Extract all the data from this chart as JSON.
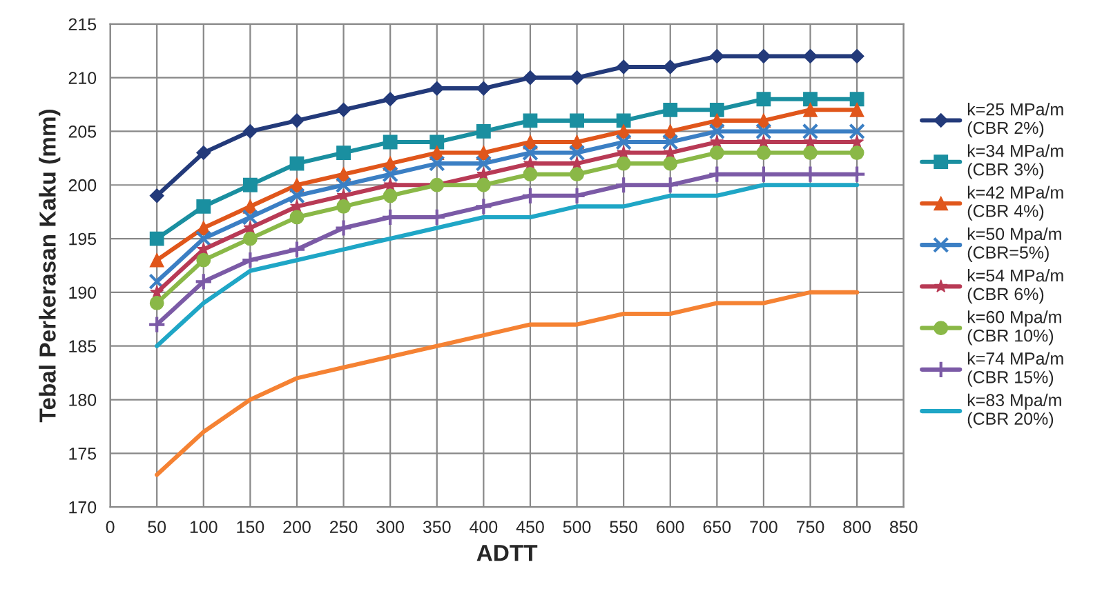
{
  "chart_data": {
    "type": "line",
    "xlabel": "ADTT",
    "ylabel": "Tebal Perkerasan Kaku (mm)",
    "x": [
      50,
      100,
      150,
      200,
      250,
      300,
      350,
      400,
      450,
      500,
      550,
      600,
      650,
      700,
      750,
      800
    ],
    "xlim": [
      0,
      850
    ],
    "xticks": [
      0,
      50,
      100,
      150,
      200,
      250,
      300,
      350,
      400,
      450,
      500,
      550,
      600,
      650,
      700,
      750,
      800,
      850
    ],
    "ylim": [
      170,
      215
    ],
    "yticks": [
      170,
      175,
      180,
      185,
      190,
      195,
      200,
      205,
      210,
      215
    ],
    "grid": true,
    "legend": "right",
    "line_style": "solid",
    "series": [
      {
        "name": "k=25 MPa/m\n(CBR 2%)",
        "color": "#233a7a",
        "marker": "diamond",
        "values": [
          199,
          203,
          205,
          206,
          207,
          208,
          209,
          209,
          210,
          210,
          211,
          211,
          212,
          212,
          212,
          212
        ]
      },
      {
        "name": "k=34 MPa/m\n(CBR 3%)",
        "color": "#1a8fa0",
        "marker": "square",
        "values": [
          195,
          198,
          200,
          202,
          203,
          204,
          204,
          205,
          206,
          206,
          206,
          207,
          207,
          208,
          208,
          208
        ]
      },
      {
        "name": "k=42 MPa/m\n(CBR 4%)",
        "color": "#e0561b",
        "marker": "triangle",
        "values": [
          193,
          196,
          198,
          200,
          201,
          202,
          203,
          203,
          204,
          204,
          205,
          205,
          206,
          206,
          207,
          207
        ]
      },
      {
        "name": "k=50 Mpa/m\n(CBR=5%)",
        "color": "#3b7fc4",
        "marker": "cross",
        "values": [
          191,
          195,
          197,
          199,
          200,
          201,
          202,
          202,
          203,
          203,
          204,
          204,
          205,
          205,
          205,
          205
        ]
      },
      {
        "name": "k=54 MPa/m\n(CBR 6%)",
        "color": "#b83a55",
        "marker": "star",
        "values": [
          190,
          194,
          196,
          198,
          199,
          200,
          200,
          201,
          202,
          202,
          203,
          203,
          204,
          204,
          204,
          204
        ]
      },
      {
        "name": "k=60 Mpa/m\n(CBR 10%)",
        "color": "#8ab847",
        "marker": "circle",
        "values": [
          189,
          193,
          195,
          197,
          198,
          199,
          200,
          200,
          201,
          201,
          202,
          202,
          203,
          203,
          203,
          203
        ]
      },
      {
        "name": "k=74 MPa/m\n(CBR 15%)",
        "color": "#7b5aa6",
        "marker": "plus",
        "values": [
          187,
          191,
          193,
          194,
          196,
          197,
          197,
          198,
          199,
          199,
          200,
          200,
          201,
          201,
          201,
          201
        ]
      },
      {
        "name": "k=83 Mpa/m\n(CBR 20%)",
        "color": "#1fa6c6",
        "marker": "none",
        "values": [
          185,
          189,
          192,
          193,
          194,
          195,
          196,
          197,
          197,
          198,
          198,
          199,
          199,
          200,
          200,
          200
        ]
      },
      {
        "color": "#f58233",
        "marker": "none",
        "values": [
          173,
          177,
          180,
          182,
          183,
          184,
          185,
          186,
          187,
          187,
          188,
          188,
          189,
          189,
          190,
          190
        ]
      }
    ]
  }
}
